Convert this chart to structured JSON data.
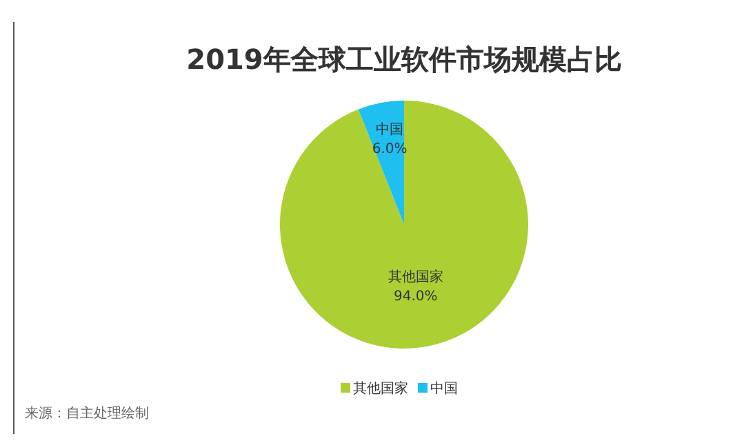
{
  "chart_data": {
    "type": "pie",
    "title": "2019年全球工业软件市场规模占比",
    "categories": [
      "其他国家",
      "中国"
    ],
    "values": [
      94,
      6
    ],
    "value_labels": [
      "94.0%",
      "6.0%"
    ],
    "colors": [
      "#acd033",
      "#1fbff0"
    ],
    "legend": "bottom",
    "annotations": [
      "来源：自主处理绘制"
    ]
  }
}
